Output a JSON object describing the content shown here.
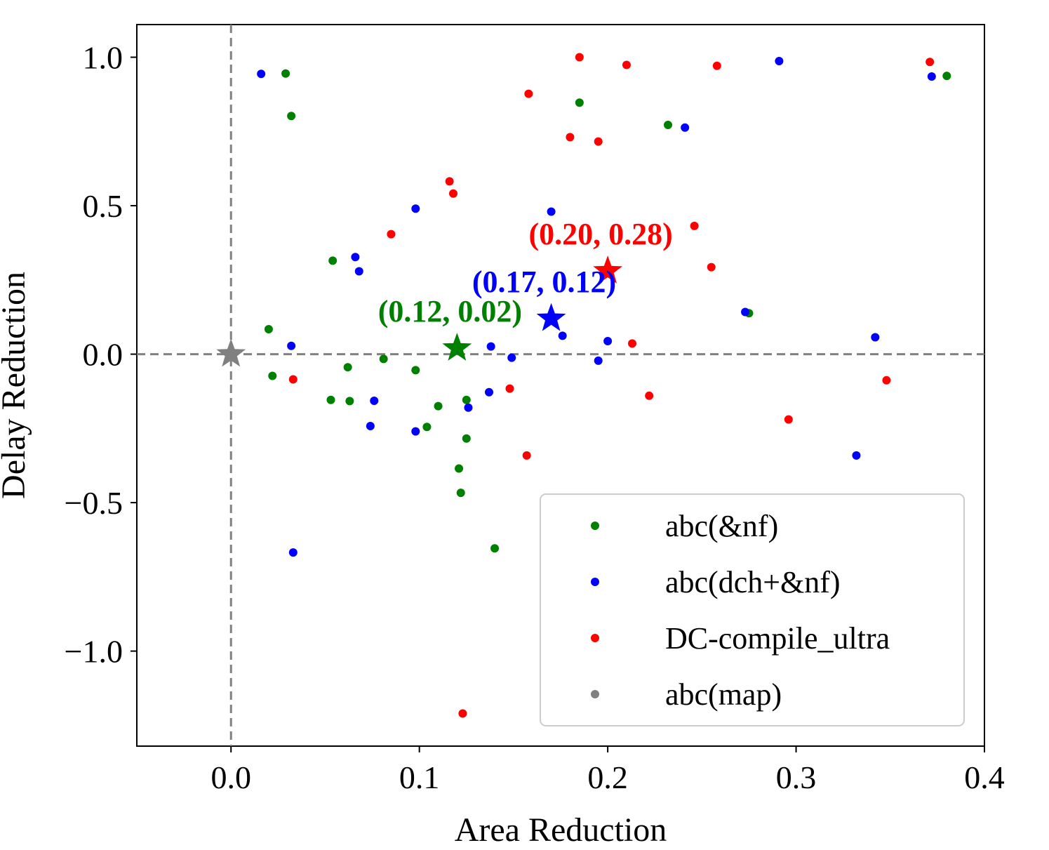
{
  "chart_data": {
    "type": "scatter",
    "xlabel": "Area Reduction",
    "ylabel": "Delay Reduction",
    "xlim": [
      -0.05,
      0.4
    ],
    "ylim": [
      -1.32,
      1.11
    ],
    "x_ticks": [
      0.0,
      0.1,
      0.2,
      0.3,
      0.4
    ],
    "x_tick_labels": [
      "0.0",
      "0.1",
      "0.2",
      "0.3",
      "0.4"
    ],
    "y_ticks": [
      1.0,
      0.5,
      0.0,
      -0.5,
      -1.0
    ],
    "y_tick_labels": [
      "1.0",
      "0.5",
      "0.0",
      "−0.5",
      "−1.0"
    ],
    "reference_lines": {
      "x": 0.0,
      "y": 0.0,
      "style": "dashed",
      "color": "#808080"
    },
    "legend_position": "lower-right",
    "series": [
      {
        "name": "abc(&nf)",
        "color": "#008000",
        "points": [
          [
            0.029,
            0.945
          ],
          [
            0.032,
            0.802
          ],
          [
            0.185,
            0.847
          ],
          [
            0.232,
            0.772
          ],
          [
            0.38,
            0.937
          ],
          [
            0.054,
            0.315
          ],
          [
            0.02,
            0.084
          ],
          [
            0.022,
            -0.073
          ],
          [
            0.062,
            -0.044
          ],
          [
            0.081,
            -0.016
          ],
          [
            0.098,
            -0.054
          ],
          [
            0.053,
            -0.154
          ],
          [
            0.063,
            -0.158
          ],
          [
            0.11,
            -0.175
          ],
          [
            0.104,
            -0.245
          ],
          [
            0.125,
            -0.154
          ],
          [
            0.125,
            -0.284
          ],
          [
            0.121,
            -0.385
          ],
          [
            0.122,
            -0.467
          ],
          [
            0.14,
            -0.654
          ],
          [
            0.275,
            0.138
          ]
        ],
        "mean": [
          0.12,
          0.02
        ],
        "mean_label": "(0.12, 0.02)"
      },
      {
        "name": "abc(dch+&nf)",
        "color": "#0000ff",
        "points": [
          [
            0.016,
            0.944
          ],
          [
            0.291,
            0.987
          ],
          [
            0.372,
            0.935
          ],
          [
            0.241,
            0.763
          ],
          [
            0.098,
            0.49
          ],
          [
            0.17,
            0.48
          ],
          [
            0.066,
            0.327
          ],
          [
            0.068,
            0.279
          ],
          [
            0.032,
            0.028
          ],
          [
            0.138,
            0.026
          ],
          [
            0.149,
            -0.012
          ],
          [
            0.176,
            0.062
          ],
          [
            0.2,
            0.044
          ],
          [
            0.195,
            -0.022
          ],
          [
            0.273,
            0.142
          ],
          [
            0.342,
            0.057
          ],
          [
            0.076,
            -0.157
          ],
          [
            0.074,
            -0.242
          ],
          [
            0.098,
            -0.26
          ],
          [
            0.137,
            -0.128
          ],
          [
            0.126,
            -0.18
          ],
          [
            0.332,
            -0.341
          ],
          [
            0.033,
            -0.668
          ]
        ],
        "mean": [
          0.17,
          0.12
        ],
        "mean_label": "(0.17, 0.12)"
      },
      {
        "name": "DC-compile_ultra",
        "color": "#ff0000",
        "points": [
          [
            0.185,
            1.0
          ],
          [
            0.21,
            0.974
          ],
          [
            0.258,
            0.971
          ],
          [
            0.371,
            0.984
          ],
          [
            0.158,
            0.877
          ],
          [
            0.18,
            0.731
          ],
          [
            0.195,
            0.716
          ],
          [
            0.116,
            0.582
          ],
          [
            0.118,
            0.541
          ],
          [
            0.085,
            0.404
          ],
          [
            0.246,
            0.432
          ],
          [
            0.255,
            0.293
          ],
          [
            0.213,
            0.036
          ],
          [
            0.033,
            -0.085
          ],
          [
            0.148,
            -0.116
          ],
          [
            0.222,
            -0.14
          ],
          [
            0.348,
            -0.088
          ],
          [
            0.296,
            -0.22
          ],
          [
            0.157,
            -0.341
          ],
          [
            0.123,
            -1.21
          ]
        ],
        "mean": [
          0.2,
          0.28
        ],
        "mean_label": "(0.20, 0.28)"
      },
      {
        "name": "abc(map)",
        "color": "#808080",
        "points": [],
        "mean": [
          0.0,
          0.0
        ],
        "mean_label": ""
      }
    ]
  }
}
